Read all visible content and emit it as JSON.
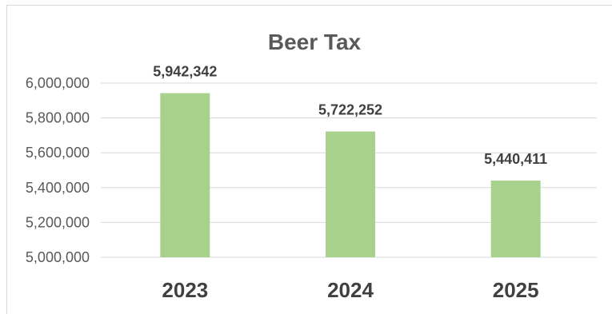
{
  "chart_data": {
    "type": "bar",
    "title": "Beer Tax",
    "xlabel": "",
    "ylabel": "",
    "categories": [
      "2023",
      "2024",
      "2025"
    ],
    "values": [
      5942342,
      5722252,
      5440411
    ],
    "data_labels": [
      "5,942,342",
      "5,722,252",
      "5,440,411"
    ],
    "ylim": [
      5000000,
      6000000
    ],
    "yticks": [
      5000000,
      5200000,
      5400000,
      5600000,
      5800000,
      6000000
    ],
    "ytick_labels": [
      "5,000,000",
      "5,200,000",
      "5,400,000",
      "5,600,000",
      "5,800,000",
      "6,000,000"
    ],
    "grid": true,
    "legend": "none",
    "bar_color": "#a9d18e",
    "grid_color": "#d9d9d9"
  }
}
